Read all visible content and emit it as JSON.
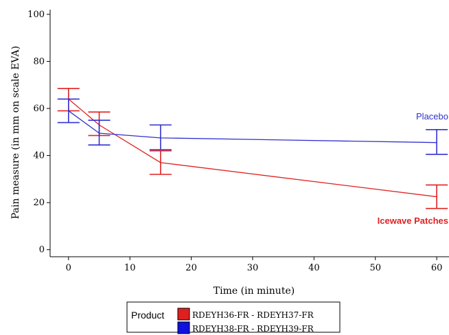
{
  "chart_data": {
    "type": "line",
    "xlabel": "Time (in minute)",
    "ylabel": "Pain measure (in mm on scale EVA)",
    "xlim": [
      -3,
      62
    ],
    "ylim": [
      -3,
      102
    ],
    "x_ticks": [
      0,
      10,
      20,
      30,
      40,
      50,
      60
    ],
    "y_ticks": [
      0,
      20,
      40,
      60,
      80,
      100
    ],
    "x_tick_labels": [
      "0",
      "10",
      "20",
      "30",
      "40",
      "50",
      "60"
    ],
    "y_tick_labels": [
      "0",
      "20",
      "40",
      "60",
      "80",
      "100"
    ],
    "grid": false,
    "legend_position": "bottom-center",
    "legend_title": "Product",
    "series": [
      {
        "name": "RDEYH36-FR - RDEYH37-FR",
        "annotation": "Icewave Patches",
        "color": "#e02020",
        "x": [
          0,
          5,
          15,
          60
        ],
        "y": [
          64,
          53,
          37,
          22.5
        ],
        "error_low": [
          59,
          48.5,
          32,
          17.5
        ],
        "error_high": [
          68.5,
          58.5,
          42,
          27.5
        ]
      },
      {
        "name": "RDEYH38-FR - RDEYH39-FR",
        "annotation": "Placebo",
        "color": "#3030d0",
        "x": [
          0,
          5,
          15,
          60
        ],
        "y": [
          59,
          49.5,
          47.5,
          45.5
        ],
        "error_low": [
          54,
          44.5,
          42.5,
          40.5
        ],
        "error_high": [
          64,
          55,
          53,
          51
        ]
      }
    ]
  }
}
